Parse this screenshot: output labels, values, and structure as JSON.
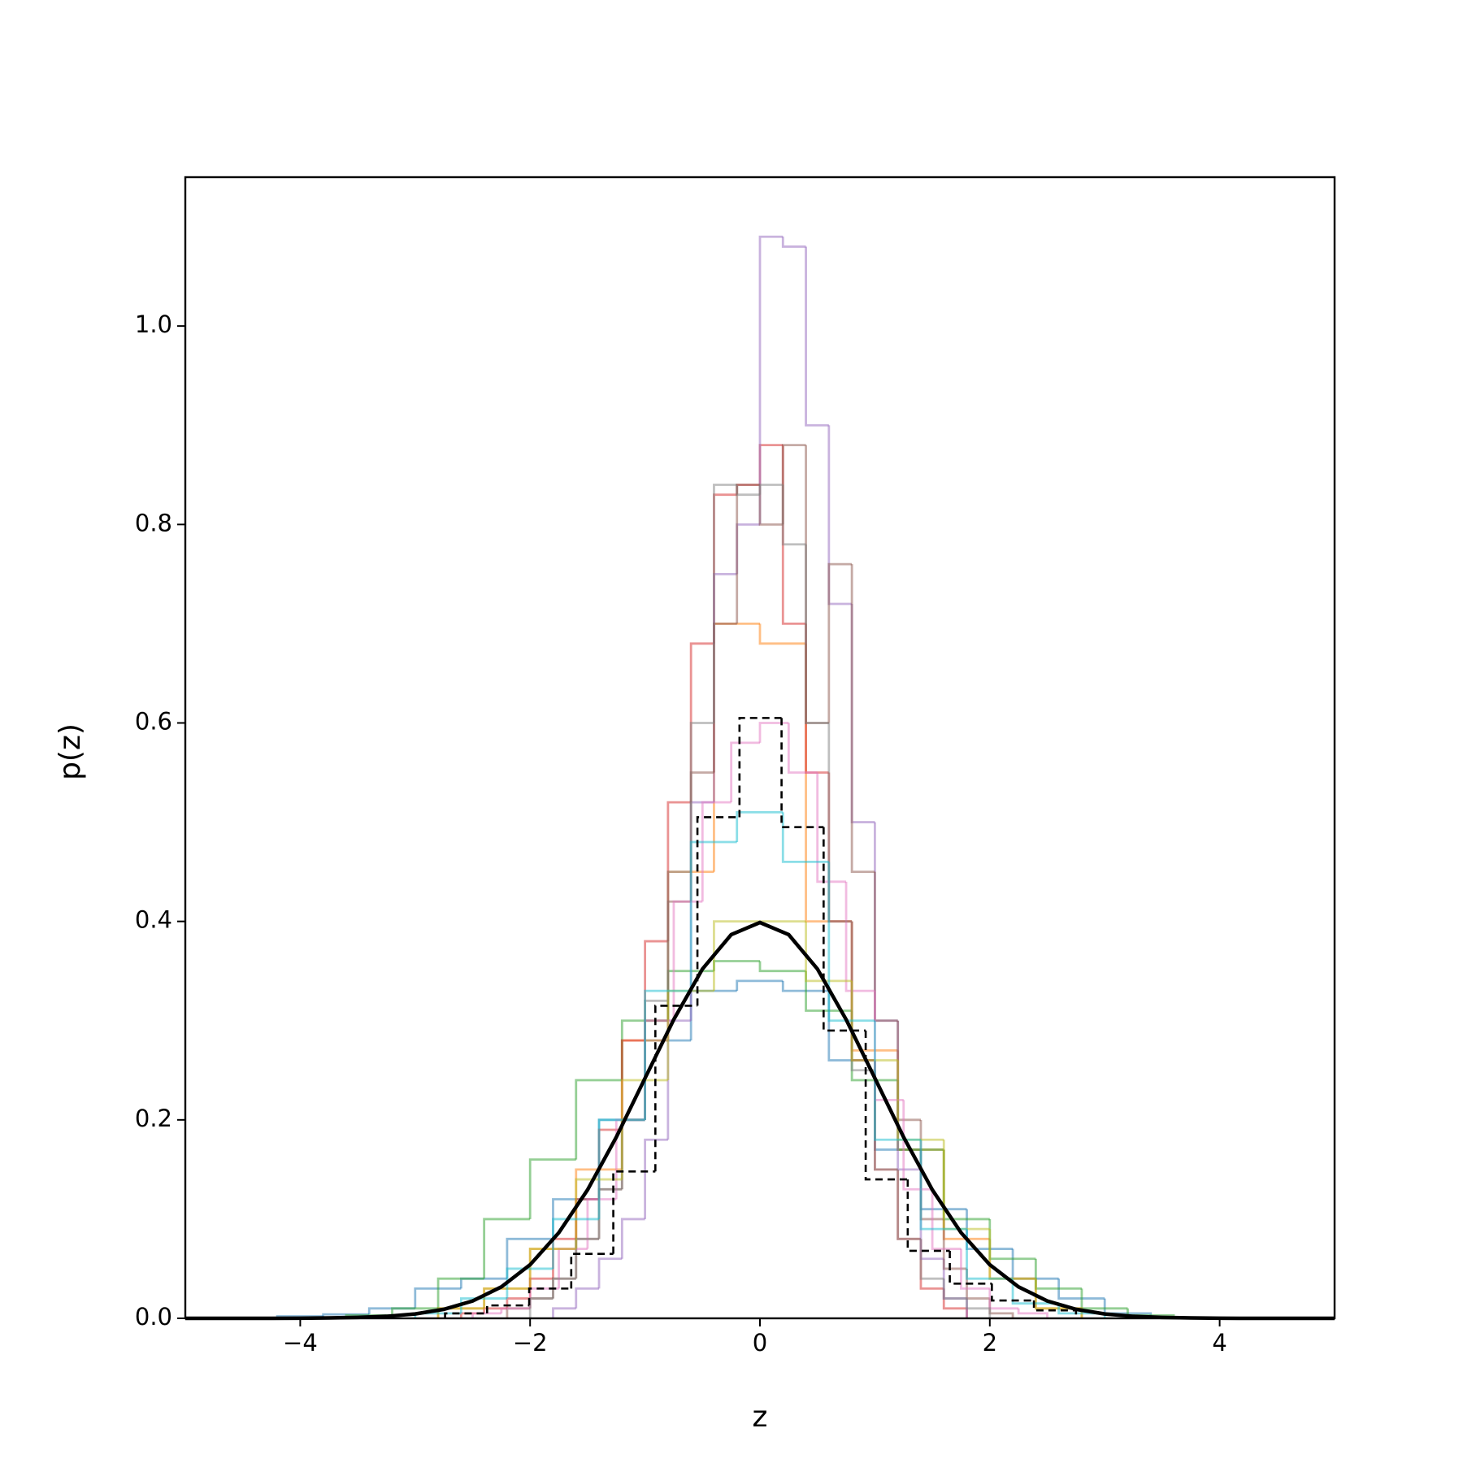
{
  "chart_data": {
    "type": "histogram",
    "xlabel": "z",
    "ylabel": "p(z)",
    "xlim": [
      -5,
      5
    ],
    "ylim": [
      0,
      1.15
    ],
    "xticks": [
      {
        "value": -4,
        "label": "−4"
      },
      {
        "value": -2,
        "label": "−2"
      },
      0,
      2,
      4
    ],
    "yticks": [
      {
        "value": 0,
        "label": "0.0"
      },
      0.2,
      0.4,
      0.6,
      0.8,
      {
        "value": 1,
        "label": "1.0"
      }
    ],
    "series": [
      {
        "color": "#1f77b4",
        "bins": [
          -4.2,
          -3.8,
          -3.4,
          -3.0,
          -2.6,
          -2.2,
          -1.8,
          -1.4,
          -1.0,
          -0.6,
          -0.2,
          0.2,
          0.6,
          1.0,
          1.4,
          1.8,
          2.2,
          2.6,
          3.0,
          3.4
        ],
        "values": [
          0.002,
          0.004,
          0.01,
          0.03,
          0.04,
          0.08,
          0.12,
          0.2,
          0.28,
          0.33,
          0.34,
          0.33,
          0.26,
          0.17,
          0.11,
          0.07,
          0.04,
          0.02,
          0.005
        ]
      },
      {
        "color": "#ff7f0e",
        "bins": [
          -2.8,
          -2.4,
          -2.0,
          -1.6,
          -1.2,
          -0.8,
          -0.4,
          0,
          0.4,
          0.8,
          1.2,
          1.6,
          2.0,
          2.4,
          2.8
        ],
        "values": [
          0.01,
          0.03,
          0.07,
          0.15,
          0.28,
          0.45,
          0.7,
          0.68,
          0.4,
          0.27,
          0.17,
          0.08,
          0.04,
          0.01
        ]
      },
      {
        "color": "#2ca02c",
        "bins": [
          -3.6,
          -3.2,
          -2.8,
          -2.4,
          -2.0,
          -1.6,
          -1.2,
          -0.8,
          -0.4,
          0,
          0.4,
          0.8,
          1.2,
          1.6,
          2.0,
          2.4,
          2.8,
          3.2,
          3.6
        ],
        "values": [
          0.003,
          0.01,
          0.04,
          0.1,
          0.16,
          0.24,
          0.3,
          0.35,
          0.36,
          0.35,
          0.31,
          0.24,
          0.17,
          0.1,
          0.06,
          0.03,
          0.01,
          0.003
        ]
      },
      {
        "color": "#d62728",
        "bins": [
          -2.6,
          -2.4,
          -2.2,
          -2.0,
          -1.8,
          -1.6,
          -1.4,
          -1.2,
          -1.0,
          -0.8,
          -0.6,
          -0.4,
          -0.2,
          0,
          0.2,
          0.4,
          0.6,
          0.8,
          1.0,
          1.2,
          1.4,
          1.6,
          1.8
        ],
        "values": [
          0.005,
          0.01,
          0.02,
          0.04,
          0.08,
          0.12,
          0.19,
          0.28,
          0.38,
          0.52,
          0.68,
          0.83,
          0.84,
          0.88,
          0.7,
          0.55,
          0.4,
          0.26,
          0.15,
          0.08,
          0.03,
          0.01
        ]
      },
      {
        "color": "#9467bd",
        "bins": [
          -1.8,
          -1.6,
          -1.4,
          -1.2,
          -1.0,
          -0.8,
          -0.6,
          -0.4,
          -0.2,
          0,
          0.2,
          0.4,
          0.6,
          0.8,
          1.0,
          1.2,
          1.4,
          1.6,
          1.8
        ],
        "values": [
          0.01,
          0.03,
          0.06,
          0.1,
          0.18,
          0.3,
          0.52,
          0.75,
          0.8,
          1.09,
          1.08,
          0.9,
          0.72,
          0.5,
          0.3,
          0.15,
          0.06,
          0.02
        ]
      },
      {
        "color": "#8c564b",
        "bins": [
          -2.2,
          -2.0,
          -1.8,
          -1.6,
          -1.4,
          -1.2,
          -1.0,
          -0.8,
          -0.6,
          -0.4,
          -0.2,
          0,
          0.2,
          0.4,
          0.6,
          0.8,
          1.0,
          1.2,
          1.4,
          1.6,
          1.8,
          2.0,
          2.2
        ],
        "values": [
          0.01,
          0.02,
          0.04,
          0.08,
          0.13,
          0.2,
          0.3,
          0.42,
          0.55,
          0.7,
          0.84,
          0.8,
          0.88,
          0.6,
          0.76,
          0.45,
          0.3,
          0.2,
          0.1,
          0.05,
          0.02,
          0.005
        ]
      },
      {
        "color": "#e377c2",
        "bins": [
          -2.5,
          -2.25,
          -2.0,
          -1.75,
          -1.5,
          -1.25,
          -1.0,
          -0.75,
          -0.5,
          -0.25,
          0,
          0.25,
          0.5,
          0.75,
          1.0,
          1.25,
          1.5,
          1.75,
          2.0,
          2.25,
          2.5
        ],
        "values": [
          0.005,
          0.01,
          0.03,
          0.07,
          0.12,
          0.2,
          0.3,
          0.42,
          0.52,
          0.58,
          0.6,
          0.55,
          0.44,
          0.33,
          0.22,
          0.13,
          0.07,
          0.03,
          0.01,
          0.005
        ]
      },
      {
        "color": "#7f7f7f",
        "bins": [
          -2.0,
          -1.8,
          -1.6,
          -1.4,
          -1.2,
          -1.0,
          -0.8,
          -0.6,
          -0.4,
          -0.2,
          0,
          0.2,
          0.4,
          0.6,
          0.8,
          1.0,
          1.2,
          1.4,
          1.6,
          1.8,
          2.0
        ],
        "values": [
          0.02,
          0.04,
          0.08,
          0.13,
          0.2,
          0.32,
          0.45,
          0.6,
          0.84,
          0.83,
          0.84,
          0.78,
          0.6,
          0.4,
          0.25,
          0.15,
          0.08,
          0.04,
          0.02,
          0.01
        ]
      },
      {
        "color": "#bcbd22",
        "bins": [
          -2.8,
          -2.4,
          -2.0,
          -1.6,
          -1.2,
          -0.8,
          -0.4,
          0,
          0.4,
          0.8,
          1.2,
          1.6,
          2.0,
          2.4,
          2.8
        ],
        "values": [
          0.01,
          0.03,
          0.07,
          0.14,
          0.24,
          0.33,
          0.4,
          0.4,
          0.34,
          0.26,
          0.18,
          0.09,
          0.04,
          0.01
        ]
      },
      {
        "color": "#17becf",
        "bins": [
          -3.0,
          -2.6,
          -2.2,
          -1.8,
          -1.4,
          -1.0,
          -0.6,
          -0.2,
          0.2,
          0.6,
          1.0,
          1.4,
          1.8,
          2.2,
          2.6,
          3.0
        ],
        "values": [
          0.005,
          0.02,
          0.05,
          0.1,
          0.2,
          0.33,
          0.48,
          0.51,
          0.46,
          0.3,
          0.18,
          0.09,
          0.04,
          0.015,
          0.005
        ]
      },
      {
        "color": "#000000",
        "linestyle": "dashed",
        "bins": [
          -2.74,
          -2.374,
          -2.008,
          -1.642,
          -1.276,
          -0.91,
          -0.544,
          -0.178,
          0.188,
          0.554,
          0.92,
          1.286,
          1.652,
          2.018,
          2.384,
          2.75
        ],
        "values": [
          0.005,
          0.013,
          0.03,
          0.065,
          0.148,
          0.315,
          0.505,
          0.605,
          0.495,
          0.29,
          0.14,
          0.068,
          0.035,
          0.018,
          0.008
        ]
      }
    ],
    "curve": {
      "color": "#000000",
      "x": [
        -5,
        -4.75,
        -4.5,
        -4.25,
        -4,
        -3.75,
        -3.5,
        -3.25,
        -3,
        -2.75,
        -2.5,
        -2.25,
        -2,
        -1.75,
        -1.5,
        -1.25,
        -1,
        -0.75,
        -0.5,
        -0.25,
        0,
        0.25,
        0.5,
        0.75,
        1,
        1.25,
        1.5,
        1.75,
        2,
        2.25,
        2.5,
        2.75,
        3,
        3.25,
        3.5,
        3.75,
        4,
        4.25,
        4.5,
        4.75,
        5
      ],
      "y": [
        0,
        0,
        0,
        0,
        0.0001,
        0.0004,
        0.0009,
        0.002,
        0.0044,
        0.0091,
        0.0175,
        0.0317,
        0.054,
        0.0863,
        0.1295,
        0.1826,
        0.242,
        0.3011,
        0.3521,
        0.3867,
        0.3989,
        0.3867,
        0.3521,
        0.3011,
        0.242,
        0.1826,
        0.1295,
        0.0863,
        0.054,
        0.0317,
        0.0175,
        0.0091,
        0.0044,
        0.002,
        0.0009,
        0.0004,
        0.0001,
        0,
        0,
        0,
        0
      ]
    }
  }
}
